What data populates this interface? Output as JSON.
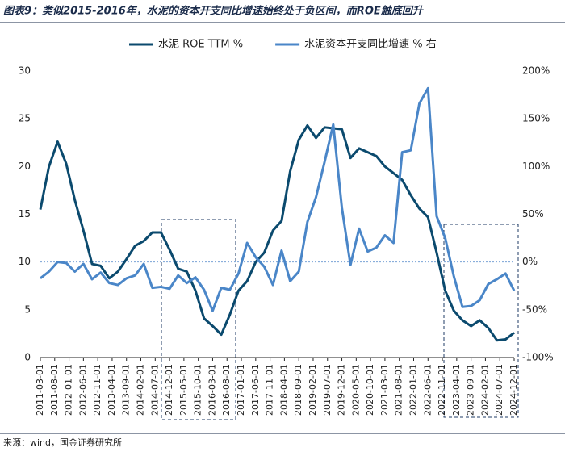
{
  "chart_data": {
    "type": "line",
    "title": "图表9：类似2015-2016年，水泥的资本开支同比增速始终处于负区间，而ROE触底回升",
    "source": "来源：wind，国金证券研究所",
    "x": [
      "2011-03-01",
      "2011-06-01",
      "2011-09-01",
      "2011-12-01",
      "2012-03-01",
      "2012-06-01",
      "2012-09-01",
      "2012-12-01",
      "2013-03-01",
      "2013-06-01",
      "2013-09-01",
      "2013-12-01",
      "2014-03-01",
      "2014-06-01",
      "2014-09-01",
      "2014-12-01",
      "2015-03-01",
      "2015-06-01",
      "2015-09-01",
      "2015-12-01",
      "2016-03-01",
      "2016-06-01",
      "2016-09-01",
      "2016-12-01",
      "2017-03-01",
      "2017-06-01",
      "2017-09-01",
      "2017-12-01",
      "2018-03-01",
      "2018-06-01",
      "2018-09-01",
      "2018-12-01",
      "2019-03-01",
      "2019-06-01",
      "2019-09-01",
      "2019-12-01",
      "2020-03-01",
      "2020-06-01",
      "2020-09-01",
      "2020-12-01",
      "2021-03-01",
      "2021-06-01",
      "2021-09-01",
      "2021-12-01",
      "2022-03-01",
      "2022-06-01",
      "2022-09-01",
      "2022-12-01",
      "2023-03-01",
      "2023-06-01",
      "2023-09-01",
      "2023-12-01",
      "2024-03-01",
      "2024-06-01",
      "2024-09-01",
      "2024-12-01"
    ],
    "xticks": [
      "2011-03-01",
      "2011-08-01",
      "2012-01-01",
      "2012-06-01",
      "2012-11-01",
      "2013-04-01",
      "2013-09-01",
      "2014-02-01",
      "2014-07-01",
      "2014-12-01",
      "2015-05-01",
      "2015-10-01",
      "2016-03-01",
      "2016-08-01",
      "2017-01-01",
      "2017-06-01",
      "2017-11-01",
      "2018-04-01",
      "2018-09-01",
      "2019-02-01",
      "2019-07-01",
      "2019-12-01",
      "2020-05-01",
      "2020-10-01",
      "2021-03-01",
      "2021-08-01",
      "2022-01-01",
      "2022-06-01",
      "2022-11-01",
      "2023-04-01",
      "2023-09-01",
      "2024-02-01",
      "2024-07-01",
      "2024-12-01"
    ],
    "series": [
      {
        "name": "水泥 ROE TTM %",
        "color": "#0b4a6e",
        "axis": "y",
        "values": [
          15.5,
          20,
          22.6,
          20.3,
          16.5,
          13.3,
          9.8,
          9.6,
          8.3,
          9,
          10.3,
          11.7,
          12.2,
          13.1,
          13.1,
          11.3,
          9.3,
          9,
          7,
          4.1,
          3.3,
          2.4,
          4.5,
          7,
          8,
          10,
          11,
          13.3,
          14.3,
          19.5,
          22.8,
          24.3,
          23,
          24.1,
          24,
          23.9,
          20.9,
          21.9,
          21.5,
          21.1,
          20,
          19.3,
          18.6,
          17,
          15.6,
          14.7,
          11,
          7,
          4.9,
          3.9,
          3.3,
          3.9,
          3.1,
          1.8,
          1.9,
          2.6
        ]
      },
      {
        "name": "水泥资本开支同比增速 % 右",
        "color": "#4a86c8",
        "axis": "y2",
        "values": [
          -17,
          -10,
          0,
          -1,
          -10,
          -2,
          -18,
          -11,
          -22,
          -24,
          -17,
          -14,
          -2,
          -27,
          -26,
          -28,
          -14,
          -22,
          -16,
          -29,
          -51,
          -27,
          -29,
          -12,
          20,
          5,
          -5,
          -24,
          12,
          -20,
          -10,
          42,
          68,
          105,
          144,
          57,
          -3,
          35,
          11,
          15,
          28,
          20,
          115,
          117,
          166,
          182,
          48,
          25,
          -15,
          -47,
          -46,
          -40,
          -23,
          -18,
          -12,
          -30
        ]
      }
    ],
    "ylim": [
      0,
      30
    ],
    "yticks": [
      0,
      5,
      10,
      15,
      20,
      25,
      30
    ],
    "y2lim": [
      -100,
      200
    ],
    "y2ticks": [
      {
        "value": -100,
        "label": "-100%"
      },
      {
        "value": -50,
        "label": "-50%"
      },
      {
        "value": 0,
        "label": "0%"
      },
      {
        "value": 50,
        "label": "50%"
      },
      {
        "value": 100,
        "label": "100%"
      },
      {
        "value": 150,
        "label": "150%"
      },
      {
        "value": 200,
        "label": "200%"
      }
    ],
    "reference_line_y2": 0,
    "legend": "top"
  }
}
